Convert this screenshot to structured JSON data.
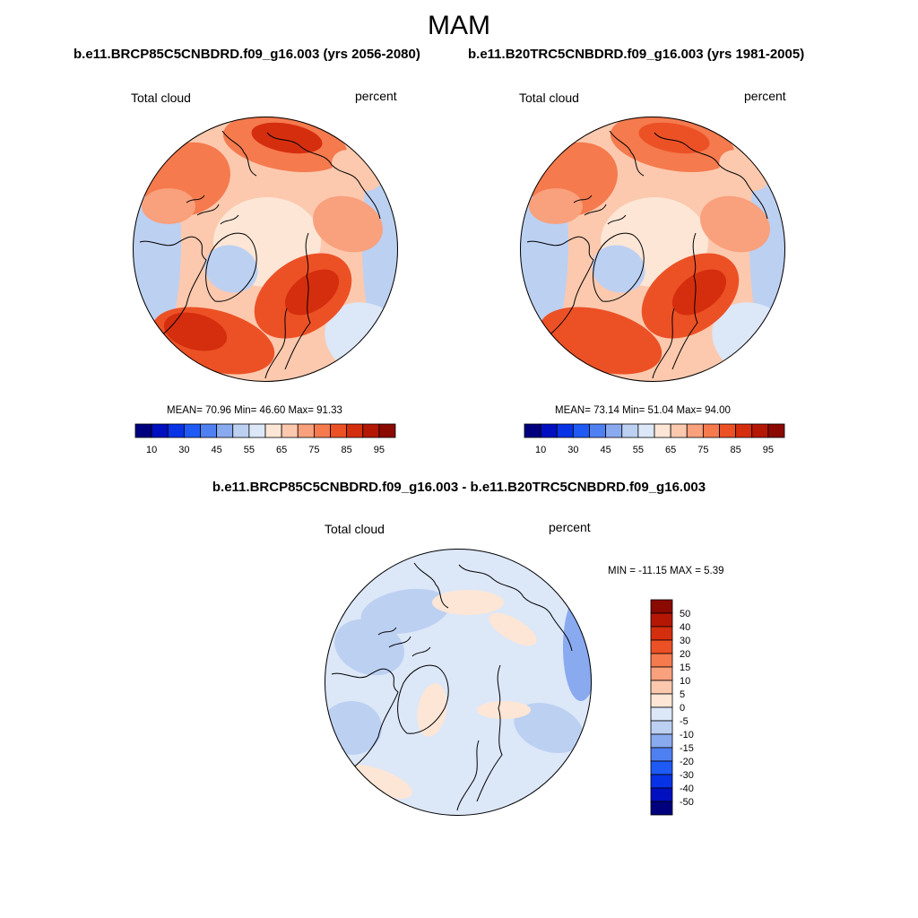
{
  "title": "MAM",
  "palette": {
    "seq": [
      "#00007f",
      "#0010c0",
      "#0832e6",
      "#1f5af5",
      "#4f80f2",
      "#8aaaf0",
      "#bcd0f2",
      "#dce7f8",
      "#fde6d6",
      "#fcc9ae",
      "#f9a07c",
      "#f57a4e",
      "#ec5126",
      "#d52e0e",
      "#b51705",
      "#8b0a00"
    ],
    "map_seq": {
      "c50": "#bcd0f2",
      "c55": "#dce7f8",
      "c60": "#fde6d6",
      "c65": "#fcc9ae",
      "c70": "#f9a07c",
      "c75": "#f57a4e",
      "c80": "#ec5126",
      "c85": "#d52e0e",
      "c90": "#b51705"
    },
    "map_diff": {
      "ocean": "#dce7f8",
      "neg": "#bcd0f2",
      "negdeep": "#8aaaf0",
      "pos": "#fde6d6"
    }
  },
  "panels": [
    {
      "run": "b.e11.BRCP85C5CNBDRD.f09_g16.003 (yrs 2056-2080)",
      "variable": "Total cloud",
      "units": "percent",
      "stats": "MEAN=  70.96  Min=  46.60  Max=  91.33",
      "mean": 70.96,
      "min": 46.6,
      "max": 91.33
    },
    {
      "run": "b.e11.B20TRC5CNBDRD.f09_g16.003 (yrs 1981-2005)",
      "variable": "Total cloud",
      "units": "percent",
      "stats": "MEAN=  73.14  Min=  51.04  Max=  94.00",
      "mean": 73.14,
      "min": 51.04,
      "max": 94.0
    }
  ],
  "colorbar_labels": [
    "10",
    "30",
    "45",
    "55",
    "65",
    "75",
    "85",
    "95"
  ],
  "difference": {
    "title": "b.e11.BRCP85C5CNBDRD.f09_g16.003 - b.e11.B20TRC5CNBDRD.f09_g16.003",
    "variable": "Total cloud",
    "units": "percent",
    "stats": "MIN = -11.15 MAX =   5.39",
    "min": -11.15,
    "max": 5.39,
    "colorbar_labels": [
      "50",
      "40",
      "30",
      "20",
      "15",
      "10",
      "5",
      "0",
      "-5",
      "-10",
      "-15",
      "-20",
      "-30",
      "-40",
      "-50"
    ],
    "colorbar_colors": [
      "#8b0a00",
      "#b51705",
      "#d52e0e",
      "#ec5126",
      "#f57a4e",
      "#f9a07c",
      "#fcc9ae",
      "#fde6d6",
      "#dce7f8",
      "#bcd0f2",
      "#8aaaf0",
      "#4f80f2",
      "#1f5af5",
      "#0832e6",
      "#0010c0",
      "#00007f"
    ]
  }
}
